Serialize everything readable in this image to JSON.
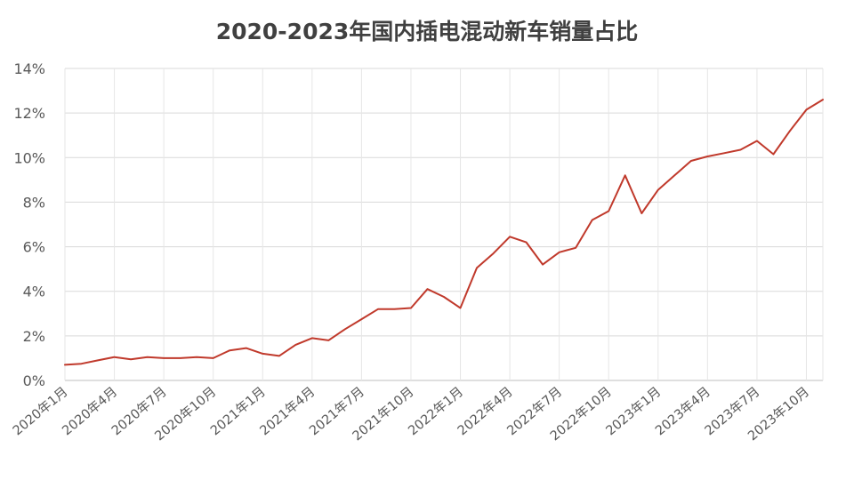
{
  "chart_data": {
    "type": "line",
    "title": "2020-2023年国内插电混动新车销量占比",
    "xlabel": "",
    "ylabel": "",
    "ylim": [
      0,
      14
    ],
    "y_ticks": [
      "0%",
      "2%",
      "4%",
      "6%",
      "8%",
      "10%",
      "12%",
      "14%"
    ],
    "y_tick_values": [
      0,
      2,
      4,
      6,
      8,
      10,
      12,
      14
    ],
    "grid": true,
    "x": [
      "2020年1月",
      "2020年2月",
      "2020年3月",
      "2020年4月",
      "2020年5月",
      "2020年6月",
      "2020年7月",
      "2020年8月",
      "2020年9月",
      "2020年10月",
      "2020年11月",
      "2020年12月",
      "2021年1月",
      "2021年2月",
      "2021年3月",
      "2021年4月",
      "2021年5月",
      "2021年6月",
      "2021年7月",
      "2021年8月",
      "2021年9月",
      "2021年10月",
      "2021年11月",
      "2021年12月",
      "2022年1月",
      "2022年2月",
      "2022年3月",
      "2022年4月",
      "2022年5月",
      "2022年6月",
      "2022年7月",
      "2022年8月",
      "2022年9月",
      "2022年10月",
      "2022年11月",
      "2022年12月",
      "2023年1月",
      "2023年2月",
      "2023年3月",
      "2023年4月",
      "2023年5月",
      "2023年6月",
      "2023年7月",
      "2023年8月",
      "2023年9月",
      "2023年10月",
      "2023年11月"
    ],
    "x_tick_labels": [
      "2020年1月",
      "2020年4月",
      "2020年7月",
      "2020年10月",
      "2021年1月",
      "2021年4月",
      "2021年7月",
      "2021年10月",
      "2022年1月",
      "2022年4月",
      "2022年7月",
      "2022年10月",
      "2023年1月",
      "2023年4月",
      "2023年7月",
      "2023年10月"
    ],
    "series": [
      {
        "values": [
          0.7,
          0.75,
          0.9,
          1.05,
          0.95,
          1.05,
          1.0,
          1.0,
          1.05,
          1.0,
          1.35,
          1.45,
          1.2,
          1.1,
          1.6,
          1.9,
          1.8,
          2.3,
          2.75,
          3.2,
          3.2,
          3.25,
          4.1,
          3.75,
          3.25,
          5.05,
          5.7,
          6.45,
          6.2,
          5.2,
          5.75,
          5.95,
          7.2,
          7.6,
          9.2,
          7.5,
          8.55,
          9.2,
          9.85,
          10.05,
          10.2,
          10.35,
          10.75,
          10.15,
          11.2,
          12.15,
          12.6
        ],
        "color": "#c0392b"
      }
    ]
  }
}
